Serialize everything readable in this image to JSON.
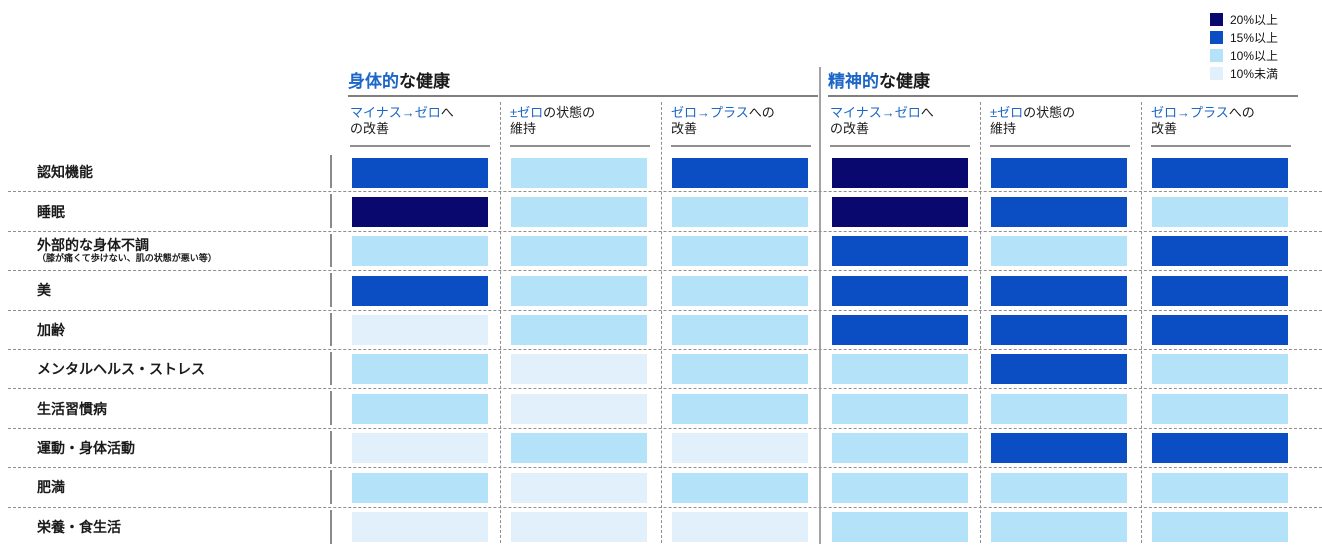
{
  "legend": {
    "items": [
      {
        "label": "20%以上",
        "color": "#08086E"
      },
      {
        "label": "15%以上",
        "color": "#0B4EC4"
      },
      {
        "label": "10%以上",
        "color": "#B3E2F9"
      },
      {
        "label": "10%未満",
        "color": "#E1F0FB"
      }
    ]
  },
  "palette": {
    "20%以上": "#08086E",
    "15%以上": "#0B4EC4",
    "10%以上": "#B3E2F9",
    "10%未満": "#E1F0FB"
  },
  "groups": [
    {
      "title_highlight": "身体的",
      "title_rest": "な健康",
      "columns": [
        {
          "line1_highlight": "マイナス→ゼロ",
          "line1_rest": "へ",
          "line2": "の改善"
        },
        {
          "line1_highlight": "±ゼロ",
          "line1_rest": "の状態の",
          "line2": "維持"
        },
        {
          "line1_highlight": "ゼロ→プラス",
          "line1_rest": "への",
          "line2": "改善"
        }
      ]
    },
    {
      "title_highlight": "精神的",
      "title_rest": "な健康",
      "columns": [
        {
          "line1_highlight": "マイナス→ゼロ",
          "line1_rest": "へ",
          "line2": "の改善"
        },
        {
          "line1_highlight": "±ゼロ",
          "line1_rest": "の状態の",
          "line2": "維持"
        },
        {
          "line1_highlight": "ゼロ→プラス",
          "line1_rest": "への",
          "line2": "改善"
        }
      ]
    }
  ],
  "rows": [
    {
      "label": "認知機能",
      "sublabel": ""
    },
    {
      "label": "睡眠",
      "sublabel": ""
    },
    {
      "label": "外部的な身体不調",
      "sublabel": "（膝が痛くて歩けない、肌の状態が悪い等）"
    },
    {
      "label": "美",
      "sublabel": ""
    },
    {
      "label": "加齢",
      "sublabel": ""
    },
    {
      "label": "メンタルヘルス・ストレス",
      "sublabel": ""
    },
    {
      "label": "生活習慣病",
      "sublabel": ""
    },
    {
      "label": "運動・身体活動",
      "sublabel": ""
    },
    {
      "label": "肥満",
      "sublabel": ""
    },
    {
      "label": "栄養・食生活",
      "sublabel": ""
    }
  ],
  "chart_data": {
    "type": "heatmap",
    "title": "",
    "row_categories": [
      "認知機能",
      "睡眠",
      "外部的な身体不調（膝が痛くて歩けない、肌の状態が悪い等）",
      "美",
      "加齢",
      "メンタルヘルス・ストレス",
      "生活習慣病",
      "運動・身体活動",
      "肥満",
      "栄養・食生活"
    ],
    "column_groups": [
      {
        "name": "身体的な健康",
        "columns": [
          "マイナス→ゼロへの改善",
          "±ゼロの状態の維持",
          "ゼロ→プラスへの改善"
        ]
      },
      {
        "name": "精神的な健康",
        "columns": [
          "マイナス→ゼロへの改善",
          "±ゼロの状態の維持",
          "ゼロ→プラスへの改善"
        ]
      }
    ],
    "legend_buckets": [
      "20%以上",
      "15%以上",
      "10%以上",
      "10%未満"
    ],
    "legend_position": "top-right",
    "values": [
      [
        "15%以上",
        "10%以上",
        "15%以上",
        "20%以上",
        "15%以上",
        "15%以上"
      ],
      [
        "20%以上",
        "10%以上",
        "10%以上",
        "20%以上",
        "15%以上",
        "10%以上"
      ],
      [
        "10%以上",
        "10%以上",
        "10%以上",
        "15%以上",
        "10%以上",
        "15%以上"
      ],
      [
        "15%以上",
        "10%以上",
        "10%以上",
        "15%以上",
        "15%以上",
        "15%以上"
      ],
      [
        "10%未満",
        "10%以上",
        "10%以上",
        "15%以上",
        "15%以上",
        "15%以上"
      ],
      [
        "10%以上",
        "10%未満",
        "10%以上",
        "10%以上",
        "15%以上",
        "10%以上"
      ],
      [
        "10%以上",
        "10%未満",
        "10%以上",
        "10%以上",
        "10%以上",
        "10%以上"
      ],
      [
        "10%未満",
        "10%以上",
        "10%未満",
        "10%以上",
        "15%以上",
        "15%以上"
      ],
      [
        "10%以上",
        "10%未満",
        "10%以上",
        "10%以上",
        "10%以上",
        "10%以上"
      ],
      [
        "10%未満",
        "10%未満",
        "10%未満",
        "10%以上",
        "10%以上",
        "10%以上"
      ]
    ]
  }
}
